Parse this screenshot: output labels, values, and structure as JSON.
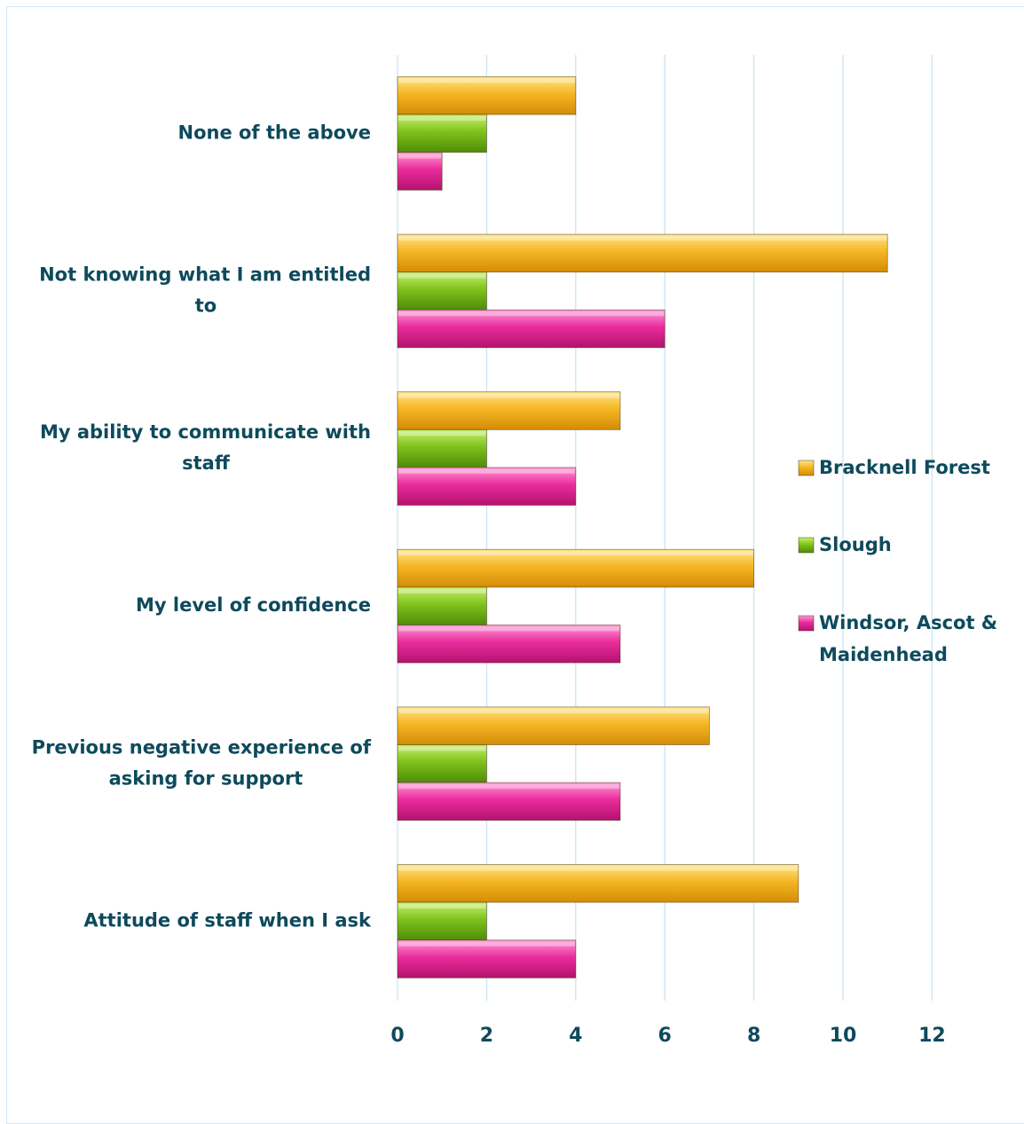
{
  "chart_data": {
    "type": "bar",
    "orientation": "horizontal",
    "categories": [
      "None of the above",
      "Not knowing what I am entitled to",
      "My ability to communicate with staff",
      "My level of confidence",
      "Previous negative experience of asking for support",
      "Attitude of staff when I ask"
    ],
    "category_label_lines": [
      [
        "None of the above"
      ],
      [
        "Not knowing what I am entitled",
        "to"
      ],
      [
        "My ability to communicate with",
        "staff"
      ],
      [
        "My level of confidence"
      ],
      [
        "Previous negative experience of",
        "asking for support"
      ],
      [
        "Attitude of staff when I ask"
      ]
    ],
    "series": [
      {
        "name": "Bracknell Forest",
        "color": "#f4b41a",
        "values": [
          4,
          11,
          5,
          8,
          7,
          9
        ]
      },
      {
        "name": "Slough",
        "color": "#7fc31c",
        "values": [
          2,
          2,
          2,
          2,
          2,
          2
        ]
      },
      {
        "name": "Windsor, Ascot & Maidenhead",
        "color": "#ea2c9c",
        "values": [
          1,
          6,
          4,
          5,
          5,
          4
        ]
      }
    ],
    "legend_lines": [
      [
        "Bracknell Forest"
      ],
      [
        "Slough"
      ],
      [
        "Windsor, Ascot &",
        "Maidenhead"
      ]
    ],
    "xlim": [
      0,
      12
    ],
    "xticks": [
      "0",
      "2",
      "4",
      "6",
      "8",
      "10",
      "12"
    ],
    "grid": true,
    "legend_position": "right",
    "title": "",
    "xlabel": "",
    "ylabel": ""
  }
}
